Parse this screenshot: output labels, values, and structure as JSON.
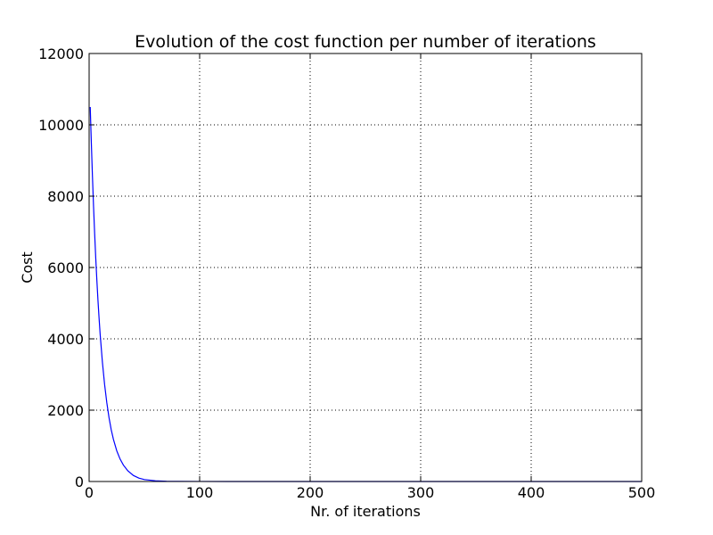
{
  "chart_data": {
    "type": "line",
    "title": "Evolution of the cost function per number of iterations",
    "xlabel": "Nr. of iterations",
    "ylabel": "Cost",
    "xlim": [
      0,
      500
    ],
    "ylim": [
      0,
      12000
    ],
    "xticks": [
      0,
      100,
      200,
      300,
      400,
      500
    ],
    "yticks": [
      0,
      2000,
      4000,
      6000,
      8000,
      10000,
      12000
    ],
    "xtick_labels": [
      "0",
      "100",
      "200",
      "300",
      "400",
      "500"
    ],
    "ytick_labels": [
      "0",
      "2000",
      "4000",
      "6000",
      "8000",
      "10000",
      "12000"
    ],
    "grid": true,
    "series": [
      {
        "color": "#0000ff",
        "x": [
          1,
          2,
          3,
          4,
          5,
          6,
          7,
          8,
          9,
          10,
          12,
          14,
          16,
          18,
          20,
          22,
          25,
          28,
          31,
          35,
          40,
          45,
          50,
          60,
          70,
          80,
          100,
          150,
          200,
          300,
          400,
          500
        ],
        "y": [
          10500,
          9500,
          8560,
          7710,
          6950,
          6260,
          5640,
          5080,
          4580,
          4120,
          3350,
          2720,
          2210,
          1790,
          1450,
          1180,
          860,
          630,
          460,
          300,
          170,
          95,
          55,
          20,
          8,
          3,
          1,
          0,
          0,
          0,
          0,
          0
        ]
      }
    ]
  }
}
